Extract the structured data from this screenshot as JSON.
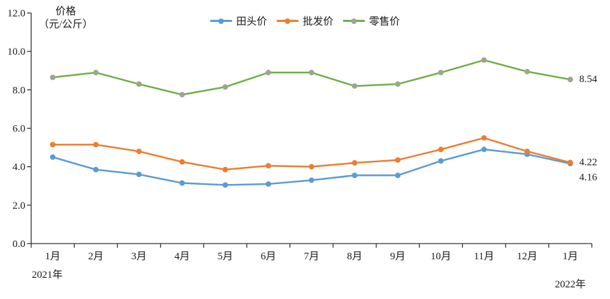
{
  "chart": {
    "ylabel_line1": "价格",
    "ylabel_line2": "（元/公斤）"
  },
  "chart_data": {
    "type": "line",
    "title": "",
    "xlabel": "",
    "ylabel": "价格（元/公斤）",
    "ylim": [
      0,
      12
    ],
    "ytick_step": 2,
    "ytick_labels": [
      "0.0",
      "2.0",
      "4.0",
      "6.0",
      "8.0",
      "10.0",
      "12.0"
    ],
    "grid": false,
    "legend_position": "top-center",
    "categories": [
      "1月",
      "2月",
      "3月",
      "4月",
      "5月",
      "6月",
      "7月",
      "8月",
      "9月",
      "10月",
      "11月",
      "12月",
      "1月"
    ],
    "x_axis_years": {
      "left": "2021年",
      "right": "2022年"
    },
    "axis_color": "#333333",
    "text_color": "#1a1a1a",
    "series": [
      {
        "name": "田头价",
        "color": "#5B9BD5",
        "marker_color": "#5B9BD5",
        "values": [
          4.5,
          3.85,
          3.6,
          3.15,
          3.05,
          3.1,
          3.3,
          3.55,
          3.55,
          4.3,
          4.9,
          4.65,
          4.16
        ],
        "end_label": "4.16"
      },
      {
        "name": "批发价",
        "color": "#ED7D31",
        "marker_color": "#ED7D31",
        "values": [
          5.15,
          5.15,
          4.8,
          4.25,
          3.85,
          4.05,
          4.0,
          4.2,
          4.35,
          4.9,
          5.5,
          4.8,
          4.22
        ],
        "end_label": "4.22"
      },
      {
        "name": "零售价",
        "color": "#70AD47",
        "marker_color": "#9DA58F",
        "values": [
          8.65,
          8.9,
          8.3,
          7.75,
          8.15,
          8.9,
          8.9,
          8.2,
          8.3,
          8.9,
          9.55,
          8.95,
          8.54
        ],
        "end_label": "8.54"
      }
    ]
  }
}
